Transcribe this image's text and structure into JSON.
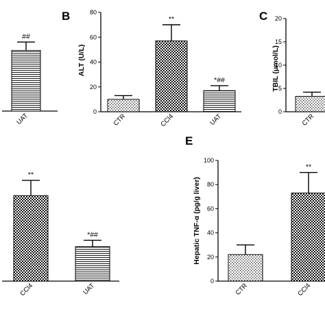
{
  "figure": {
    "background": "#ffffff",
    "bar_outline": "#000000",
    "fill_patterns": {
      "dots": "sparse dotted pattern",
      "checker": "dense checkerboard pattern",
      "stripes": "horizontal line pattern"
    }
  },
  "chart_data": [
    {
      "id": "A",
      "panel_label": "",
      "type": "bar",
      "ylabel": "",
      "ylim": [
        0,
        80
      ],
      "categories": [
        "UAT"
      ],
      "values": [
        58
      ],
      "errors": [
        8
      ],
      "patterns": [
        "stripes"
      ],
      "annotations": [
        "##"
      ]
    },
    {
      "id": "B",
      "panel_label": "B",
      "type": "bar",
      "ylabel": "ALT (U/L)",
      "ylim": [
        0,
        80
      ],
      "yticks": [
        "0",
        "20",
        "40",
        "60",
        "80"
      ],
      "categories": [
        "CTR",
        "CCl4",
        "UAT"
      ],
      "values": [
        10,
        57,
        17
      ],
      "errors": [
        3,
        13,
        4
      ],
      "patterns": [
        "dots",
        "checker",
        "stripes"
      ],
      "annotations": [
        "",
        "**",
        "*##"
      ]
    },
    {
      "id": "C",
      "panel_label": "C",
      "type": "bar",
      "ylabel": "TBIL (μmol/L)",
      "ylim": [
        0,
        20
      ],
      "yticks": [
        "0",
        "5",
        "10",
        "15",
        "20"
      ],
      "categories": [
        "CTR"
      ],
      "values": [
        3.3
      ],
      "errors": [
        0.9
      ],
      "patterns": [
        "dots"
      ],
      "annotations": [
        ""
      ]
    },
    {
      "id": "D",
      "panel_label": "",
      "type": "bar",
      "ylabel": "",
      "ylim": [
        0,
        100
      ],
      "categories": [
        "CCl4",
        "UAT"
      ],
      "values": [
        67,
        27
      ],
      "errors": [
        12,
        5
      ],
      "patterns": [
        "checker",
        "stripes"
      ],
      "annotations": [
        "**",
        "*##"
      ]
    },
    {
      "id": "E",
      "panel_label": "E",
      "type": "bar",
      "ylabel": "Hepatic TNF-α (pg/g liver)",
      "ylim": [
        0,
        100
      ],
      "yticks": [
        "0",
        "20",
        "40",
        "60",
        "80",
        "100"
      ],
      "categories": [
        "CTR",
        "CCl4"
      ],
      "values": [
        22,
        73
      ],
      "errors": [
        8,
        17
      ],
      "patterns": [
        "dots",
        "checker"
      ],
      "annotations": [
        "",
        "**"
      ]
    }
  ]
}
